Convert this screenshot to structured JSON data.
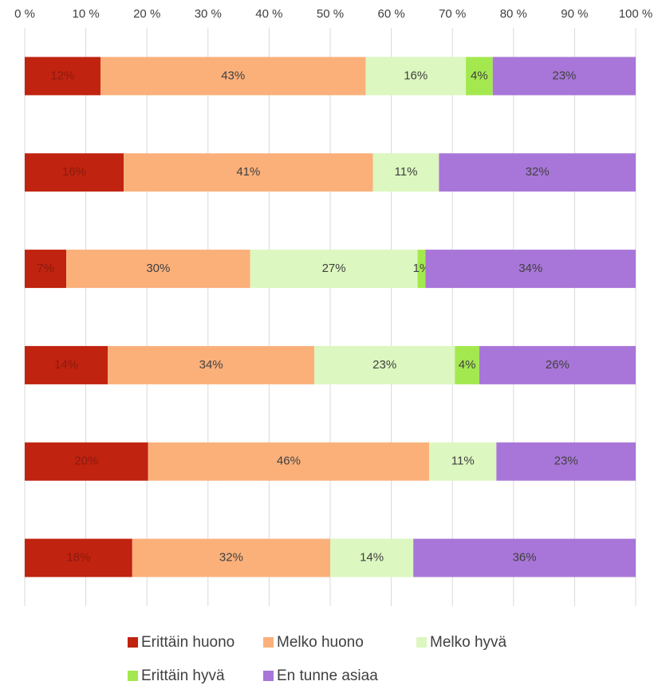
{
  "chart_data": {
    "type": "stacked-bar-horizontal",
    "categories": [
      null,
      null,
      null,
      null,
      null,
      null
    ],
    "xlim": [
      0,
      100
    ],
    "xticks": [
      {
        "value": 0,
        "label": "0 %"
      },
      {
        "value": 10,
        "label": "10 %"
      },
      {
        "value": 20,
        "label": "20 %"
      },
      {
        "value": 30,
        "label": "30 %"
      },
      {
        "value": 40,
        "label": "40 %"
      },
      {
        "value": 50,
        "label": "50 %"
      },
      {
        "value": 60,
        "label": "60 %"
      },
      {
        "value": 70,
        "label": "70 %"
      },
      {
        "value": 80,
        "label": "80 %"
      },
      {
        "value": 90,
        "label": "90 %"
      },
      {
        "value": 100,
        "label": "100 %"
      }
    ],
    "grid": true,
    "legend": "bottom",
    "series": [
      {
        "name": "Erittäin huono",
        "color": "#c0230f",
        "label_color": "#8b1a10",
        "values": [
          12.4,
          16.2,
          6.8,
          13.6,
          20.2,
          17.6
        ],
        "value_labels": [
          "12%",
          "16%",
          "7%",
          "14%",
          "20%",
          "18%"
        ]
      },
      {
        "name": "Melko huono",
        "color": "#fbb07a",
        "values": [
          43.4,
          40.8,
          30.1,
          33.8,
          46.0,
          32.4
        ],
        "value_labels": [
          "43%",
          "41%",
          "30%",
          "34%",
          "46%",
          "32%"
        ]
      },
      {
        "name": "Melko hyvä",
        "color": "#dcf7bf",
        "values": [
          16.4,
          10.8,
          27.4,
          23.0,
          11.0,
          13.6
        ],
        "value_labels": [
          "16%",
          "11%",
          "27%",
          "23%",
          "11%",
          "14%"
        ]
      },
      {
        "name": "Erittäin hyvä",
        "color": "#a4e84f",
        "values": [
          4.4,
          0,
          1.3,
          4.0,
          0,
          0
        ],
        "value_labels": [
          "4%",
          null,
          "1%",
          "4%",
          null,
          null
        ]
      },
      {
        "name": "En tunne asiaa",
        "color": "#a876d8",
        "values": [
          23.4,
          32.2,
          34.4,
          25.6,
          22.8,
          36.4
        ],
        "value_labels": [
          "23%",
          "32%",
          "34%",
          "26%",
          "23%",
          "36%"
        ]
      }
    ]
  }
}
